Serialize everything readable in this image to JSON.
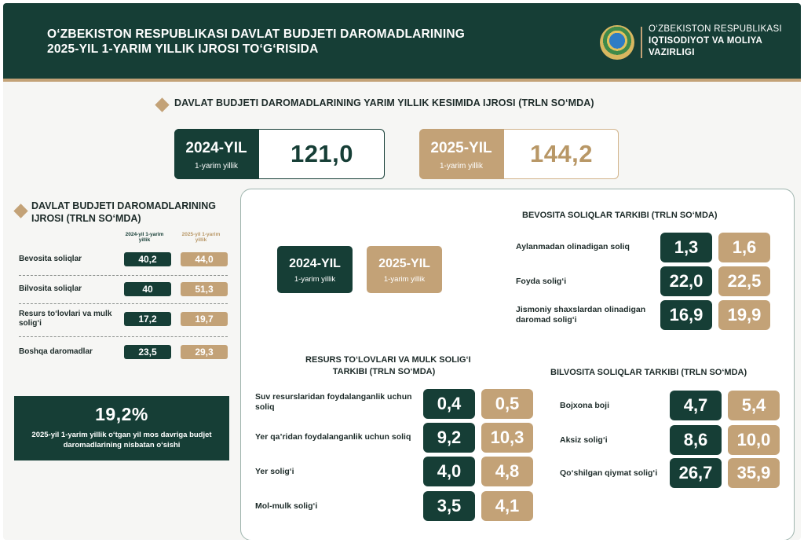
{
  "header": {
    "title_line1": "O‘ZBEKISTON RESPUBLIKASI DAVLAT BUDJETI DAROMADLARINING",
    "title_line2": "2025-YIL 1-YARIM YILLIK IJROSI TO‘G‘RISIDA",
    "ministry_line1": "O‘ZBEKISTON RESPUBLIKASI",
    "ministry_line2": "IQTISODIYOT VA MOLIYA",
    "ministry_line3": "VAZIRLIGI"
  },
  "summary": {
    "title": "DAVLAT BUDJETI DAROMADLARINING YARIM YILLIK KESIMIDA IJROSI (TRLN SO‘MDA)",
    "y2024": {
      "year": "2024-YIL",
      "period": "1-yarim yillik",
      "value": "121,0"
    },
    "y2025": {
      "year": "2025-YIL",
      "period": "1-yarim yillik",
      "value": "144,2"
    }
  },
  "left_table": {
    "title_line1": "DAVLAT BUDJETI DAROMADLARINING",
    "title_line2": "IJROSI (TRLN SO‘MDA)",
    "col1": "2024-yil 1-yarim yillik",
    "col2": "2025-yil 1-yarim yillik",
    "rows": [
      {
        "label": "Bevosita soliqlar",
        "v2024": "40,2",
        "v2025": "44,0"
      },
      {
        "label": "Bilvosita soliqlar",
        "v2024": "40",
        "v2025": "51,3"
      },
      {
        "label": "Resurs to‘lovlari va mulk solig‘i",
        "v2024": "17,2",
        "v2025": "19,7"
      },
      {
        "label": "Boshqa daromadlar",
        "v2024": "23,5",
        "v2025": "29,3"
      }
    ]
  },
  "growth": {
    "percent": "19,2%",
    "description": "2025-yil 1-yarim yillik o‘tgan yil mos davriga budjet daromadlarining nisbatan o‘sishi"
  },
  "panel": {
    "y2024": {
      "year": "2024-YIL",
      "period": "1-yarim yillik"
    },
    "y2025": {
      "year": "2025-YIL",
      "period": "1-yarim yillik"
    },
    "direct": {
      "title": "BEVOSITA SOLIQLAR TARKIBI (TRLN SO‘MDA)",
      "items": [
        {
          "label": "Aylanmadan olinadigan soliq",
          "v2024": "1,3",
          "v2025": "1,6"
        },
        {
          "label": "Foyda solig‘i",
          "v2024": "22,0",
          "v2025": "22,5"
        },
        {
          "label": "Jismoniy shaxslardan olinadigan daromad solig‘i",
          "v2024": "16,9",
          "v2025": "19,9"
        }
      ]
    },
    "resource": {
      "title_line1": "RESURS TO‘LOVLARI VA MULK SOLIG‘I",
      "title_line2": "TARKIBI (TRLN SO‘MDA)",
      "items": [
        {
          "label": "Suv resurslaridan foydalanganlik uchun soliq",
          "v2024": "0,4",
          "v2025": "0,5"
        },
        {
          "label": "Yer qa’ridan foydalanganlik uchun soliq",
          "v2024": "9,2",
          "v2025": "10,3"
        },
        {
          "label": "Yer solig‘i",
          "v2024": "4,0",
          "v2025": "4,8"
        },
        {
          "label": "Mol-mulk solig‘i",
          "v2024": "3,5",
          "v2025": "4,1"
        }
      ]
    },
    "indirect": {
      "title": "BILVOSITA SOLIQLAR TARKIBI (TRLN SO‘MDA)",
      "items": [
        {
          "label": "Bojxona boji",
          "v2024": "4,7",
          "v2025": "5,4"
        },
        {
          "label": "Aksiz solig‘i",
          "v2024": "8,6",
          "v2025": "10,0"
        },
        {
          "label": "Qo‘shilgan qiymat solig‘i",
          "v2024": "26,7",
          "v2025": "35,9"
        }
      ]
    }
  },
  "colors": {
    "dark_green": "#163e36",
    "gold": "#c3a277"
  }
}
